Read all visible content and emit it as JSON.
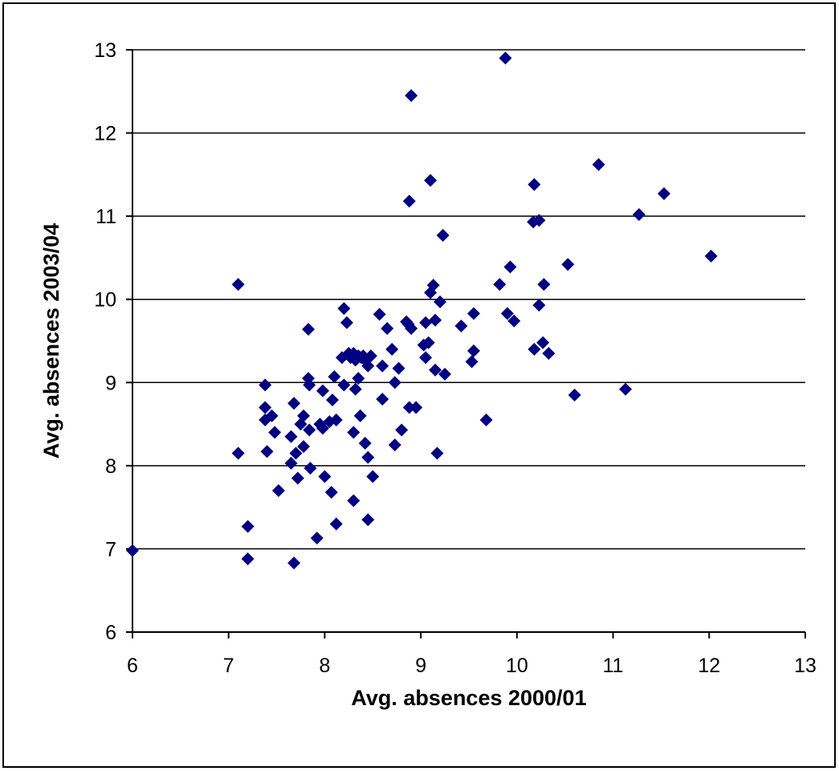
{
  "chart_data": {
    "type": "scatter",
    "title": "",
    "xlabel": "Avg. absences 2000/01",
    "ylabel": "Avg. absences 2003/04",
    "xlim": [
      6,
      13
    ],
    "ylim": [
      6,
      13
    ],
    "x_ticks": [
      "6",
      "7",
      "8",
      "9",
      "10",
      "11",
      "12",
      "13"
    ],
    "y_ticks": [
      "6",
      "7",
      "8",
      "9",
      "10",
      "11",
      "12",
      "13"
    ],
    "grid": "horizontal major gridlines",
    "legend": "none",
    "marker": "diamond",
    "marker_color": "#000080",
    "points": [
      [
        6.0,
        6.98
      ],
      [
        7.1,
        10.18
      ],
      [
        7.1,
        8.15
      ],
      [
        7.2,
        7.27
      ],
      [
        7.2,
        6.88
      ],
      [
        7.38,
        8.97
      ],
      [
        7.38,
        8.7
      ],
      [
        7.38,
        8.55
      ],
      [
        7.4,
        8.17
      ],
      [
        7.45,
        8.6
      ],
      [
        7.48,
        8.4
      ],
      [
        7.52,
        7.7
      ],
      [
        7.65,
        8.35
      ],
      [
        7.65,
        8.03
      ],
      [
        7.68,
        8.75
      ],
      [
        7.7,
        8.15
      ],
      [
        7.72,
        7.85
      ],
      [
        7.75,
        8.5
      ],
      [
        7.78,
        8.6
      ],
      [
        7.78,
        8.23
      ],
      [
        7.83,
        9.64
      ],
      [
        7.83,
        9.05
      ],
      [
        7.84,
        8.97
      ],
      [
        7.84,
        8.43
      ],
      [
        7.85,
        7.97
      ],
      [
        7.68,
        6.83
      ],
      [
        7.92,
        7.13
      ],
      [
        7.95,
        8.5
      ],
      [
        7.98,
        8.9
      ],
      [
        7.98,
        8.45
      ],
      [
        8.0,
        7.87
      ],
      [
        8.05,
        8.53
      ],
      [
        8.07,
        7.68
      ],
      [
        8.08,
        8.79
      ],
      [
        8.1,
        9.07
      ],
      [
        8.12,
        8.55
      ],
      [
        8.12,
        7.3
      ],
      [
        8.18,
        9.3
      ],
      [
        8.2,
        9.89
      ],
      [
        8.2,
        8.97
      ],
      [
        8.23,
        9.72
      ],
      [
        8.25,
        9.35
      ],
      [
        8.27,
        9.3
      ],
      [
        8.3,
        9.35
      ],
      [
        8.3,
        8.4
      ],
      [
        8.3,
        7.58
      ],
      [
        8.32,
        9.27
      ],
      [
        8.32,
        8.92
      ],
      [
        8.35,
        9.32
      ],
      [
        8.35,
        9.05
      ],
      [
        8.37,
        8.6
      ],
      [
        8.38,
        9.3
      ],
      [
        8.4,
        9.32
      ],
      [
        8.42,
        9.27
      ],
      [
        8.42,
        8.27
      ],
      [
        8.45,
        9.2
      ],
      [
        8.45,
        8.1
      ],
      [
        8.45,
        7.35
      ],
      [
        8.48,
        9.32
      ],
      [
        8.5,
        7.87
      ],
      [
        8.57,
        9.82
      ],
      [
        8.6,
        9.2
      ],
      [
        8.6,
        8.8
      ],
      [
        8.65,
        9.65
      ],
      [
        8.7,
        9.4
      ],
      [
        8.73,
        9.0
      ],
      [
        8.73,
        8.25
      ],
      [
        8.77,
        9.17
      ],
      [
        8.8,
        8.43
      ],
      [
        8.85,
        9.73
      ],
      [
        8.87,
        9.7
      ],
      [
        8.88,
        11.18
      ],
      [
        8.88,
        8.7
      ],
      [
        8.9,
        12.45
      ],
      [
        8.9,
        9.65
      ],
      [
        8.95,
        8.7
      ],
      [
        9.03,
        9.45
      ],
      [
        9.05,
        9.72
      ],
      [
        9.05,
        9.3
      ],
      [
        9.08,
        9.48
      ],
      [
        9.1,
        11.43
      ],
      [
        9.1,
        10.08
      ],
      [
        9.13,
        10.17
      ],
      [
        9.15,
        9.75
      ],
      [
        9.15,
        9.15
      ],
      [
        9.17,
        8.15
      ],
      [
        9.2,
        9.97
      ],
      [
        9.23,
        10.77
      ],
      [
        9.25,
        9.1
      ],
      [
        9.42,
        9.68
      ],
      [
        9.53,
        9.25
      ],
      [
        9.55,
        9.83
      ],
      [
        9.55,
        9.38
      ],
      [
        9.68,
        8.55
      ],
      [
        9.82,
        10.18
      ],
      [
        9.88,
        12.9
      ],
      [
        9.9,
        9.83
      ],
      [
        9.93,
        10.39
      ],
      [
        9.97,
        9.74
      ],
      [
        10.17,
        10.93
      ],
      [
        10.18,
        11.38
      ],
      [
        10.18,
        9.4
      ],
      [
        10.23,
        10.95
      ],
      [
        10.23,
        9.93
      ],
      [
        10.27,
        9.48
      ],
      [
        10.28,
        10.18
      ],
      [
        10.33,
        9.35
      ],
      [
        10.53,
        10.42
      ],
      [
        10.6,
        8.85
      ],
      [
        10.85,
        11.62
      ],
      [
        11.13,
        8.92
      ],
      [
        11.27,
        11.02
      ],
      [
        11.53,
        11.27
      ],
      [
        12.02,
        10.52
      ]
    ]
  }
}
